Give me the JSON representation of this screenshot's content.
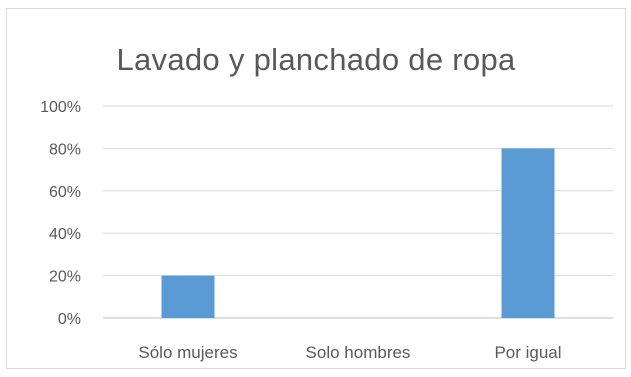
{
  "chart_data": {
    "type": "bar",
    "title": "Lavado y planchado de ropa",
    "categories": [
      "Sólo mujeres",
      "Solo hombres",
      "Por igual"
    ],
    "values": [
      20,
      0,
      80
    ],
    "ylim": [
      0,
      100
    ],
    "yticks": [
      "0%",
      "20%",
      "40%",
      "60%",
      "80%",
      "100%"
    ],
    "grid": true,
    "legend": "none",
    "colors": {
      "bar": "#5b9bd5",
      "grid": "#d9d9d9",
      "axis": "#bfbfbf",
      "text": "#595959"
    }
  }
}
